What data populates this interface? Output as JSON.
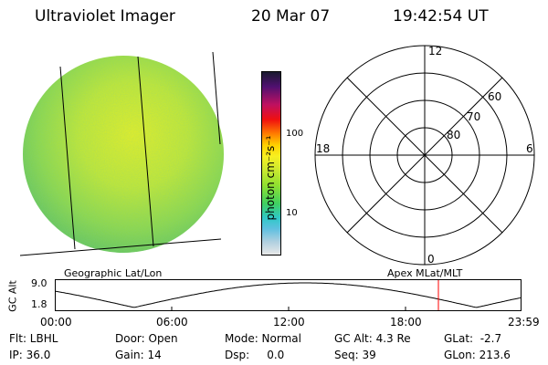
{
  "header": {
    "instrument": "Ultraviolet Imager",
    "date": "20 Mar 07",
    "time": "19:42:54 UT"
  },
  "colorbar": {
    "unit_label": "photon cm⁻²s⁻¹",
    "ticks": [
      "100",
      "10"
    ]
  },
  "polar_plot": {
    "mlt_labels": [
      "12",
      "18",
      "6",
      "0"
    ],
    "lat_labels": [
      "60",
      "70",
      "80"
    ]
  },
  "image_panel": {
    "caption": "Geographic Lat/Lon"
  },
  "polar_panel": {
    "caption": "Apex MLat/MLT"
  },
  "altitude_plot": {
    "ylabel": "GC Alt",
    "ytick_top": "9.0",
    "ytick_bottom": "1.8",
    "xticks": [
      "00:00",
      "06:00",
      "12:00",
      "18:00",
      "23:59"
    ],
    "current_time_marker_color": "#ff0000"
  },
  "footer": {
    "row1": {
      "filter": "Flt: LBHL",
      "door": "Door: Open",
      "mode": "Mode: Normal",
      "gc_alt": "GC Alt: 4.3 Re",
      "glat": "GLat:  -2.7"
    },
    "row2": {
      "ip": "IP: 36.0",
      "gain": "Gain: 14",
      "dsp": "Dsp:     0.0",
      "seq": "Seq: 39",
      "glon": "GLon: 213.6"
    }
  }
}
